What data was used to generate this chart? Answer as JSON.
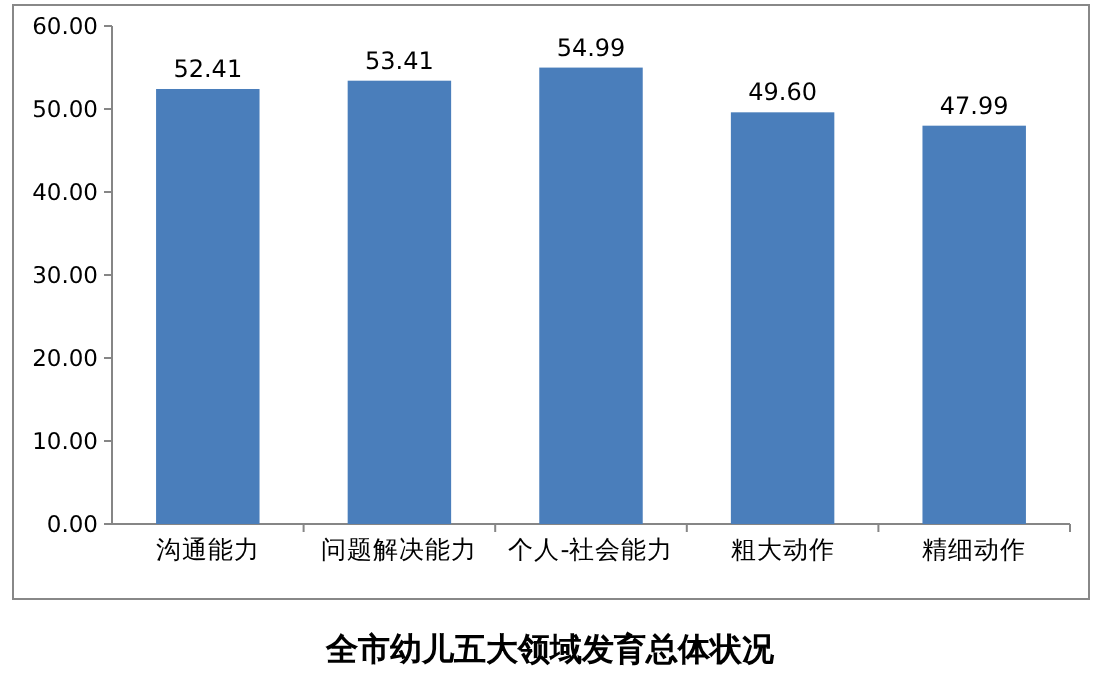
{
  "chart_data": {
    "type": "bar",
    "title": "全市幼儿五大领域发育总体状况",
    "categories": [
      "沟通能力",
      "问题解决能力",
      "个人-社会能力",
      "粗大动作",
      "精细动作"
    ],
    "values": [
      52.41,
      53.41,
      54.99,
      49.6,
      47.99
    ],
    "value_labels": [
      "52.41",
      "53.41",
      "54.99",
      "49.60",
      "47.99"
    ],
    "color": "#4a7ebb",
    "ylim": [
      0,
      60
    ],
    "yticks": [
      {
        "value": 0,
        "label": "0.00"
      },
      {
        "value": 10,
        "label": "10.00"
      },
      {
        "value": 20,
        "label": "20.00"
      },
      {
        "value": 30,
        "label": "30.00"
      },
      {
        "value": 40,
        "label": "40.00"
      },
      {
        "value": 50,
        "label": "50.00"
      },
      {
        "value": 60,
        "label": "60.00"
      }
    ]
  }
}
